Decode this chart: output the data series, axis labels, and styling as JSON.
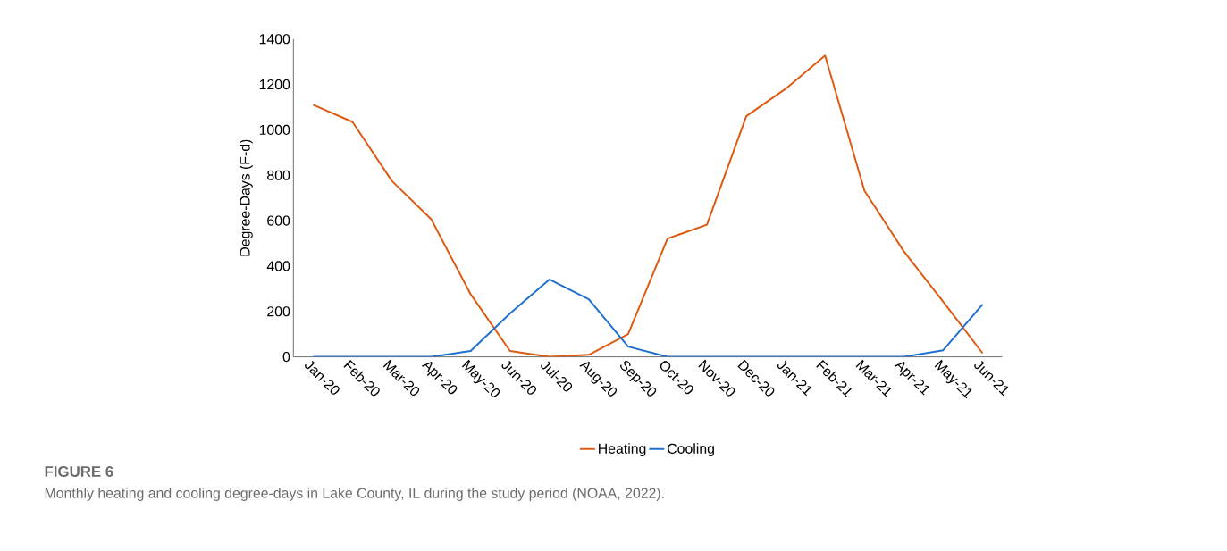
{
  "chart_data": {
    "type": "line",
    "title": "FIGURE 6",
    "ylabel": "Degree-Days (F-d)",
    "annotations": [
      "Monthly heating and cooling degree-days in Lake County, IL during the study period (NOAA, 2022)."
    ],
    "categories": [
      "Jan-20",
      "Feb-20",
      "Mar-20",
      "Apr-20",
      "May-20",
      "Jun-20",
      "Jul-20",
      "Aug-20",
      "Sep-20",
      "Oct-20",
      "Nov-20",
      "Dec-20",
      "Jan-21",
      "Feb-21",
      "Mar-21",
      "Apr-21",
      "May-21",
      "Jun-21"
    ],
    "series": [
      {
        "name": "Heating",
        "color": "#dd5a12",
        "values": [
          1110,
          1035,
          775,
          606,
          276,
          26,
          0,
          9,
          100,
          521,
          582,
          1060,
          1181,
          1327,
          732,
          465,
          243,
          16
        ]
      },
      {
        "name": "Cooling",
        "color": "#1f6fcf",
        "values": [
          0,
          0,
          0,
          0,
          26,
          191,
          341,
          254,
          45,
          0,
          0,
          0,
          0,
          0,
          0,
          0,
          29,
          231
        ]
      }
    ],
    "ylim": [
      0,
      1400
    ],
    "yticks": [
      0,
      200,
      400,
      600,
      800,
      1000,
      1200,
      1400
    ],
    "legend": "bottom"
  }
}
